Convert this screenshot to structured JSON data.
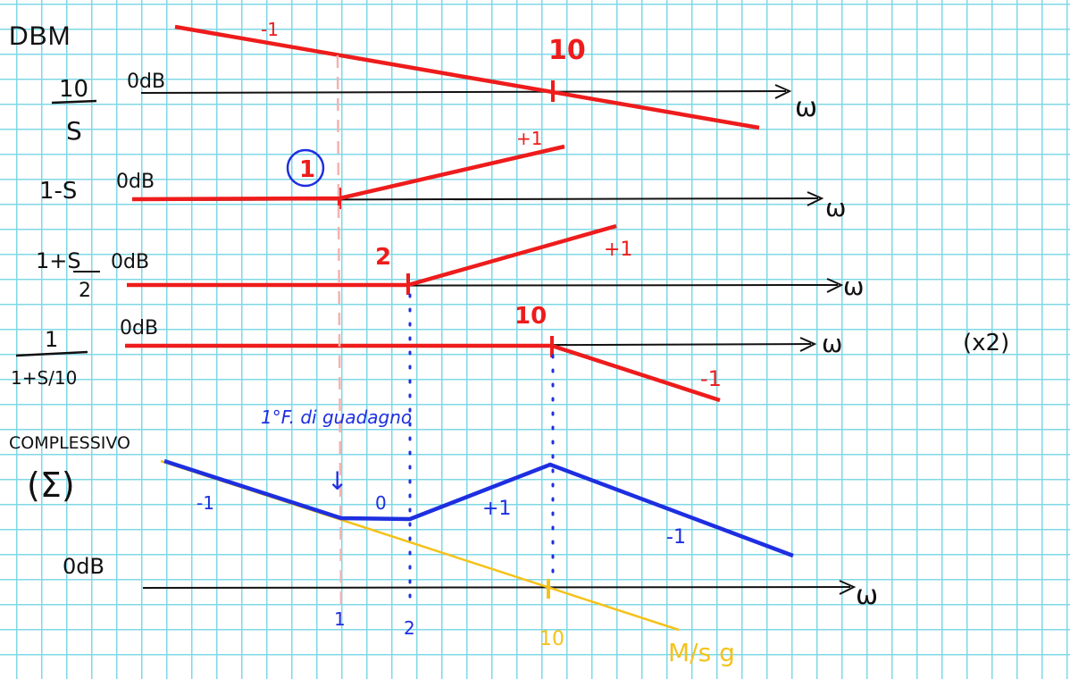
{
  "title": "DBM",
  "colors": {
    "red": "#ee1c1c",
    "black": "#111111",
    "blue": "#1d2fe0",
    "yellow": "#f5c21b",
    "pink": "#f2b3b3",
    "grid": "#7fd8e6"
  },
  "rows": [
    {
      "num": "10",
      "den": "S",
      "db": "0dB",
      "axis_label": "ω",
      "slope": "-1",
      "break_label": "10"
    },
    {
      "func": "1-S",
      "db": "0dB",
      "axis_label": "ω",
      "break_label": "1",
      "slope": "+1"
    },
    {
      "num": "1+S",
      "den": "2",
      "db": "0dB",
      "axis_label": "ω",
      "break_label": "2",
      "slope": "+1"
    },
    {
      "num": "1",
      "den": "1+S/10",
      "db": "0dB",
      "axis_label": "ω",
      "break_label": "10",
      "slope": "-1",
      "note": "(x2)"
    }
  ],
  "total": {
    "title": "COMPLESSIVO",
    "symbol": "(Σ)",
    "db": "0dB",
    "axis_label": "ω",
    "annotation": "1°F. di guadagno",
    "arrow": "↓",
    "slopes": [
      "-1",
      "0",
      "+1",
      "-1"
    ],
    "ticks": [
      "1",
      "2",
      "10"
    ],
    "asymptote_label": "M/s g"
  }
}
